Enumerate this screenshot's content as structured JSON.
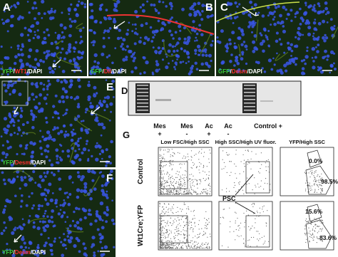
{
  "micro": [
    {
      "letter": "A",
      "stain": [
        "YFP",
        "/",
        "WT1",
        "/DAPI"
      ]
    },
    {
      "letter": "B",
      "stain": [
        "GFP",
        "/",
        "Dll",
        "/DAPI"
      ]
    },
    {
      "letter": "C",
      "stain": [
        "GFP",
        "/",
        "Desm",
        "/DAPI"
      ]
    },
    {
      "letter": "E",
      "stain": [
        "YFP",
        "/",
        "Desm",
        "/DAPI"
      ]
    },
    {
      "letter": "F",
      "stain": [
        "YFP",
        "/",
        "Desm",
        "/DAPI"
      ]
    }
  ],
  "gel": {
    "letter": "D",
    "lanes": [
      {
        "name": "Mes",
        "sign": "+"
      },
      {
        "name": "Mes",
        "sign": "-"
      },
      {
        "name": "Ac",
        "sign": "+"
      },
      {
        "name": "Ac",
        "sign": "-"
      }
    ],
    "control": "Control +"
  },
  "flow": {
    "letter": "G",
    "columns": [
      "Low FSC/High SSC",
      "High SSC/High UV fluor.",
      "YFP/High SSC"
    ],
    "rows": [
      "Control",
      "Wt1Cre;YFP"
    ],
    "psc": "PSC",
    "gates": [
      "0.0%",
      "98.5%",
      "15.6%",
      "83.6%"
    ]
  }
}
